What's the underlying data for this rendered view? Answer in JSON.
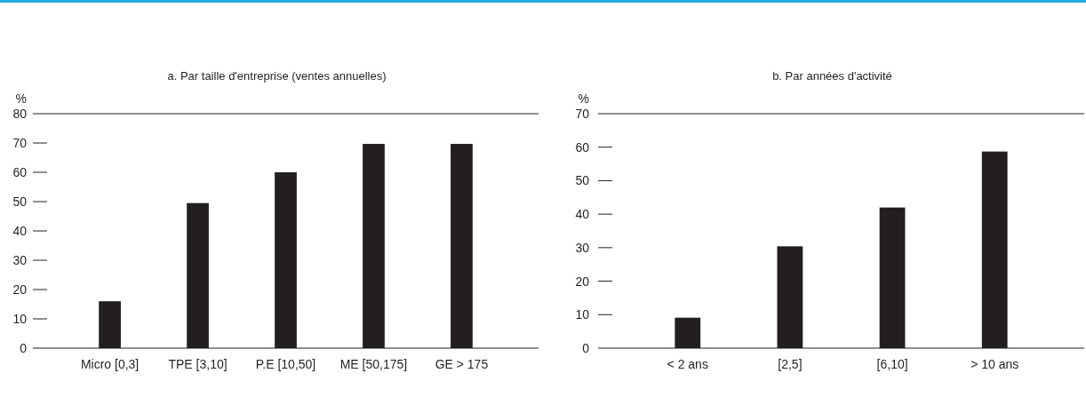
{
  "chart_data": [
    {
      "type": "bar",
      "title": "a. Par taille d'entreprise (ventes annuelles)",
      "ylabel": "%",
      "categories": [
        "Micro [0,3]",
        "TPE [3,10]",
        "P.E [10,50]",
        "ME [50,175]",
        "GE > 175"
      ],
      "values": [
        16,
        49.5,
        60,
        69.7,
        69.7
      ],
      "color": "#231f20",
      "ylim": [
        0,
        80
      ],
      "yticks": [
        0,
        10,
        20,
        30,
        40,
        50,
        60,
        70,
        80
      ]
    },
    {
      "type": "bar",
      "title": "b. Par années d'activité",
      "ylabel": "%",
      "categories": [
        "< 2 ans",
        "[2,5]",
        "[6,10]",
        "> 10 ans"
      ],
      "values": [
        9.1,
        30.4,
        42,
        58.7
      ],
      "color": "#231f20",
      "ylim": [
        0,
        70
      ],
      "yticks": [
        0,
        10,
        20,
        30,
        40,
        50,
        60,
        70
      ]
    }
  ]
}
